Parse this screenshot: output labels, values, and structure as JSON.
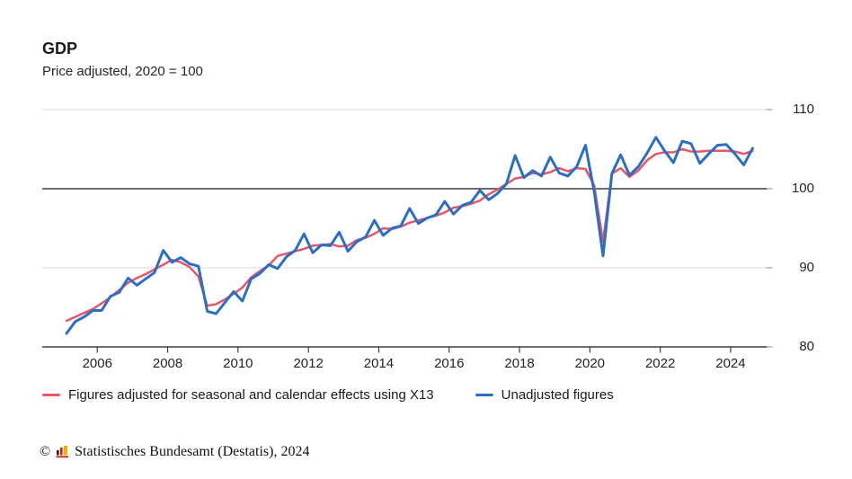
{
  "header": {
    "title": "GDP",
    "subtitle": "Price adjusted, 2020 = 100"
  },
  "legend": [
    {
      "label": "Figures adjusted for seasonal and calendar effects using X13",
      "color": "#e8556b"
    },
    {
      "label": "Unadjusted figures",
      "color": "#2b6fc4"
    }
  ],
  "footer": {
    "copyright": "©",
    "text": "Statistisches Bundesamt (Destatis), 2024",
    "logo_colors": {
      "bar1": "#1a1a1a",
      "bar2": "#d71919",
      "bar3": "#f0b400",
      "base": "#d71919"
    }
  },
  "chart_data": {
    "type": "line",
    "title": "GDP",
    "subtitle": "Price adjusted, 2020 = 100",
    "x_unit": "quarter",
    "x_start": "2005-Q1",
    "x_end": "2024-Q3",
    "x_tick_labels": [
      "2006",
      "2008",
      "2010",
      "2012",
      "2014",
      "2016",
      "2018",
      "2020",
      "2022",
      "2024"
    ],
    "y_ticks": [
      110,
      100,
      90,
      80
    ],
    "ylim": [
      80,
      111.5
    ],
    "reference_line": 100,
    "grid": "horizontal",
    "legend_position": "bottom",
    "colors": {
      "grid_light": "#d9d9d9",
      "grid_dark": "#3d3d3d",
      "tick": "#3d3d3d"
    },
    "series": [
      {
        "name": "Figures adjusted for seasonal and calendar effects using X13",
        "color": "#e8556b",
        "values": [
          83.3,
          83.8,
          84.3,
          84.8,
          85.5,
          86.3,
          87.2,
          88.1,
          88.7,
          89.2,
          89.8,
          90.4,
          91.0,
          90.7,
          90.1,
          88.9,
          85.2,
          85.4,
          86.0,
          86.7,
          87.5,
          88.8,
          89.6,
          90.3,
          91.5,
          91.8,
          92.1,
          92.4,
          92.8,
          92.9,
          93.0,
          92.7,
          92.8,
          93.5,
          93.8,
          94.3,
          95.0,
          94.9,
          95.2,
          95.7,
          96.0,
          96.3,
          96.6,
          97.0,
          97.6,
          97.8,
          98.1,
          98.5,
          99.3,
          99.9,
          100.6,
          101.3,
          101.5,
          102.0,
          101.8,
          102.1,
          102.6,
          102.2,
          102.6,
          102.5,
          100.4,
          93.3,
          101.9,
          102.6,
          101.5,
          102.3,
          103.6,
          104.4,
          104.6,
          104.6,
          105.0,
          104.7,
          104.7,
          104.8,
          104.8,
          104.8,
          104.7,
          104.4,
          104.8
        ]
      },
      {
        "name": "Unadjusted figures",
        "color": "#2b6fc4",
        "values": [
          81.7,
          83.2,
          83.8,
          84.6,
          84.6,
          86.4,
          86.9,
          88.7,
          87.8,
          88.6,
          89.4,
          92.2,
          90.7,
          91.3,
          90.5,
          90.2,
          84.5,
          84.2,
          85.6,
          87.0,
          85.8,
          88.6,
          89.3,
          90.4,
          89.9,
          91.4,
          92.2,
          94.3,
          91.9,
          92.9,
          92.8,
          94.5,
          92.1,
          93.3,
          93.9,
          96.0,
          94.1,
          95.0,
          95.3,
          97.5,
          95.6,
          96.3,
          96.7,
          98.4,
          96.8,
          97.9,
          98.3,
          99.8,
          98.6,
          99.4,
          100.6,
          104.2,
          101.4,
          102.3,
          101.6,
          104.0,
          102.0,
          101.6,
          102.8,
          105.5,
          99.6,
          91.5,
          101.9,
          104.3,
          101.7,
          102.8,
          104.5,
          106.5,
          104.8,
          103.3,
          106.0,
          105.7,
          103.2,
          104.4,
          105.5,
          105.6,
          104.4,
          103.0,
          105.1
        ]
      }
    ]
  }
}
